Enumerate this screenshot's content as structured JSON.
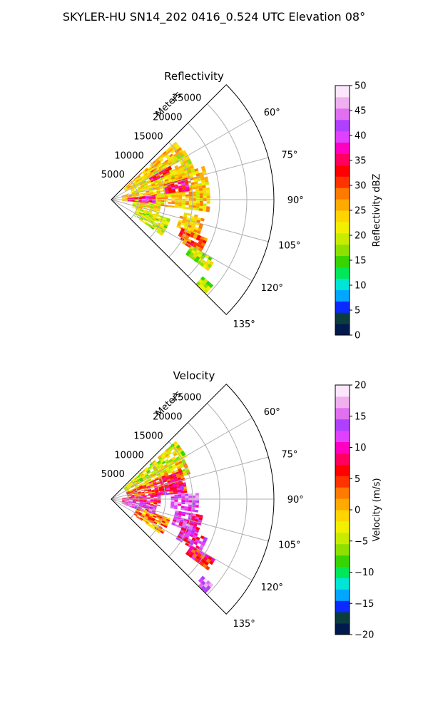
{
  "figure": {
    "suptitle": "SKYLER-HU  SN14_202  0416_0.524 UTC Elevation 08°"
  },
  "chart_data": [
    {
      "type": "heatmap",
      "subtype": "polar-sector-ppi",
      "title": "Reflectivity",
      "radial_axis": {
        "label": "Meters",
        "range": [
          0,
          30000
        ],
        "ticks": [
          5000,
          10000,
          15000,
          20000,
          25000
        ],
        "tick_labels": [
          "5000",
          "10000",
          "15000",
          "20000",
          "25000"
        ]
      },
      "azimuth_axis": {
        "range_deg": [
          45,
          135
        ],
        "ticks": [
          60,
          75,
          90,
          105,
          120,
          135
        ],
        "tick_labels": [
          "60°",
          "75°",
          "90°",
          "105°",
          "120°",
          "135°"
        ]
      },
      "grid": true,
      "colorbar": {
        "label": "Reflectivity dBZ",
        "range": [
          0,
          50
        ],
        "ticks": [
          0,
          5,
          10,
          15,
          20,
          25,
          30,
          35,
          40,
          45,
          50
        ],
        "tick_labels": [
          "0",
          "5",
          "10",
          "15",
          "20",
          "25",
          "30",
          "35",
          "40",
          "45",
          "50"
        ],
        "colormap": [
          "#001a4d",
          "#0b3d3d",
          "#0a2aff",
          "#00a6ff",
          "#00e6d6",
          "#00e85a",
          "#36d400",
          "#8ee000",
          "#c8ec00",
          "#f2f000",
          "#ffd400",
          "#ffaa00",
          "#ff7a00",
          "#ff3300",
          "#ff0000",
          "#ff0060",
          "#ff00c0",
          "#e040ff",
          "#b040ff",
          "#e070f0",
          "#f0b0f0",
          "#fbe6fb"
        ]
      },
      "echo_regions": [
        {
          "az": [
            48,
            58
          ],
          "range": [
            3000,
            16000
          ],
          "value": 25
        },
        {
          "az": [
            56,
            72
          ],
          "range": [
            4000,
            16000
          ],
          "value": 22
        },
        {
          "az": [
            60,
            66
          ],
          "range": [
            8000,
            12000
          ],
          "value": 33
        },
        {
          "az": [
            70,
            96
          ],
          "range": [
            2000,
            18000
          ],
          "value": 24
        },
        {
          "az": [
            74,
            82
          ],
          "range": [
            10000,
            14000
          ],
          "value": 35
        },
        {
          "az": [
            84,
            94
          ],
          "range": [
            3000,
            8000
          ],
          "value": 36
        },
        {
          "az": [
            96,
            110
          ],
          "range": [
            4000,
            9000
          ],
          "value": 22
        },
        {
          "az": [
            108,
            124
          ],
          "range": [
            5000,
            11000
          ],
          "value": 20
        },
        {
          "az": [
            100,
            112
          ],
          "range": [
            13000,
            17000
          ],
          "value": 24
        },
        {
          "az": [
            112,
            120
          ],
          "range": [
            14000,
            19000
          ],
          "value": 30
        },
        {
          "az": [
            120,
            126
          ],
          "range": [
            17000,
            22000
          ],
          "value": 20
        },
        {
          "az": [
            130,
            134
          ],
          "range": [
            22000,
            24000
          ],
          "value": 18
        }
      ]
    },
    {
      "type": "heatmap",
      "subtype": "polar-sector-ppi",
      "title": "Velocity",
      "radial_axis": {
        "label": "Meters",
        "range": [
          0,
          30000
        ],
        "ticks": [
          5000,
          10000,
          15000,
          20000,
          25000
        ],
        "tick_labels": [
          "5000",
          "10000",
          "15000",
          "20000",
          "25000"
        ]
      },
      "azimuth_axis": {
        "range_deg": [
          45,
          135
        ],
        "ticks": [
          60,
          75,
          90,
          105,
          120,
          135
        ],
        "tick_labels": [
          "60°",
          "75°",
          "90°",
          "105°",
          "120°",
          "135°"
        ]
      },
      "grid": true,
      "colorbar": {
        "label": "Velocity (m/s)",
        "range": [
          -20,
          20
        ],
        "ticks": [
          -20,
          -15,
          -10,
          -5,
          0,
          5,
          10,
          15,
          20
        ],
        "tick_labels": [
          "−20",
          "−15",
          "−10",
          "−5",
          "0",
          "5",
          "10",
          "15",
          "20"
        ],
        "colormap": [
          "#001a4d",
          "#0b3d3d",
          "#0a2aff",
          "#00a6ff",
          "#00e6d6",
          "#00e85a",
          "#36d400",
          "#8ee000",
          "#c8ec00",
          "#f2f000",
          "#ffd400",
          "#ffaa00",
          "#ff7a00",
          "#ff3300",
          "#ff0000",
          "#ff0060",
          "#ff00c0",
          "#e040ff",
          "#b040ff",
          "#e070f0",
          "#f0b0f0",
          "#fbe6fb"
        ]
      },
      "echo_regions": [
        {
          "az": [
            48,
            60
          ],
          "range": [
            3000,
            16000
          ],
          "value": -4
        },
        {
          "az": [
            58,
            72
          ],
          "range": [
            3000,
            15000
          ],
          "value": -2
        },
        {
          "az": [
            66,
            84
          ],
          "range": [
            3000,
            14000
          ],
          "value": 6
        },
        {
          "az": [
            76,
            84
          ],
          "range": [
            9000,
            13000
          ],
          "value": 9
        },
        {
          "az": [
            84,
            98
          ],
          "range": [
            2000,
            9000
          ],
          "value": 8
        },
        {
          "az": [
            86,
            98
          ],
          "range": [
            11000,
            16000
          ],
          "value": 14
        },
        {
          "az": [
            98,
            112
          ],
          "range": [
            2000,
            8000
          ],
          "value": 12
        },
        {
          "az": [
            108,
            124
          ],
          "range": [
            5000,
            11000
          ],
          "value": 2
        },
        {
          "az": [
            100,
            112
          ],
          "range": [
            12000,
            17000
          ],
          "value": 12
        },
        {
          "az": [
            112,
            120
          ],
          "range": [
            14000,
            19000
          ],
          "value": 10
        },
        {
          "az": [
            120,
            126
          ],
          "range": [
            17000,
            22000
          ],
          "value": 7
        },
        {
          "az": [
            130,
            134
          ],
          "range": [
            22000,
            24000
          ],
          "value": 16
        }
      ]
    }
  ]
}
